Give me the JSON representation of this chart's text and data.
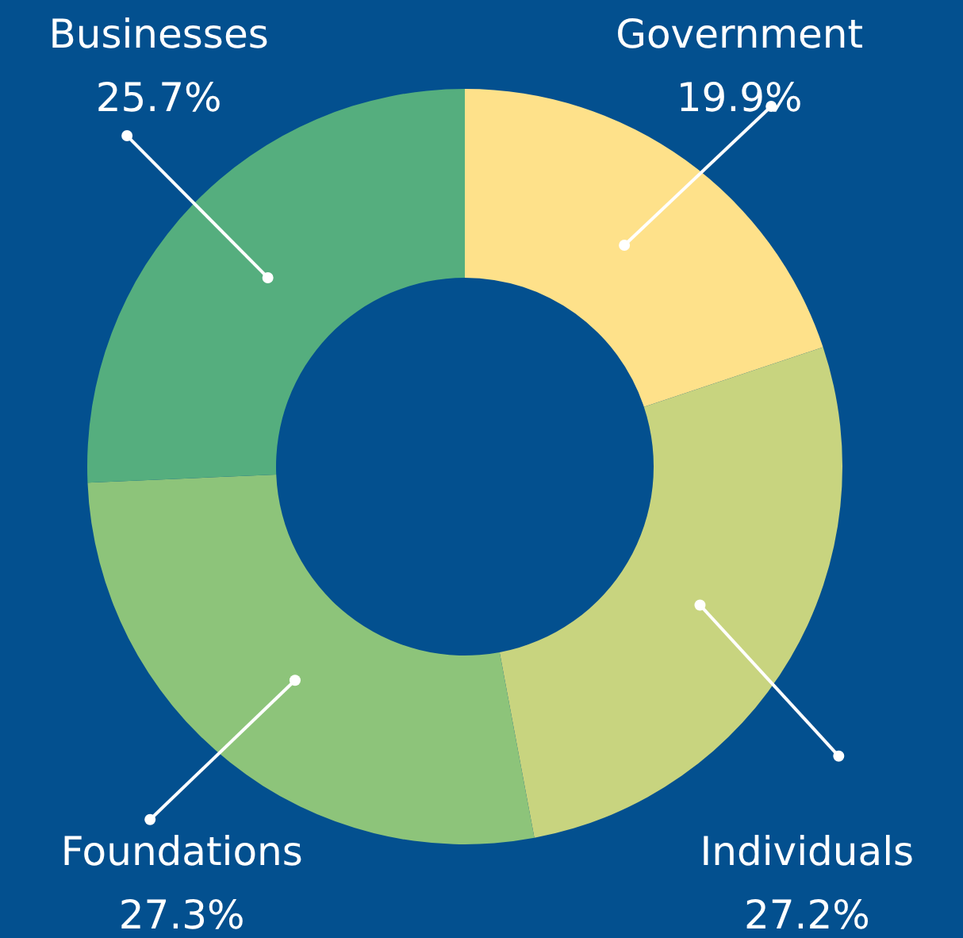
{
  "chart_data": {
    "type": "donut",
    "categories": [
      "Government",
      "Individuals",
      "Foundations",
      "Businesses"
    ],
    "values": [
      19.9,
      27.2,
      27.3,
      25.7
    ],
    "colors": [
      "#fee18a",
      "#c8d47f",
      "#8dc47a",
      "#55ae7e"
    ],
    "value_labels": [
      "19.9%",
      "27.2%",
      "27.3%",
      "25.7%"
    ],
    "legend": false
  }
}
